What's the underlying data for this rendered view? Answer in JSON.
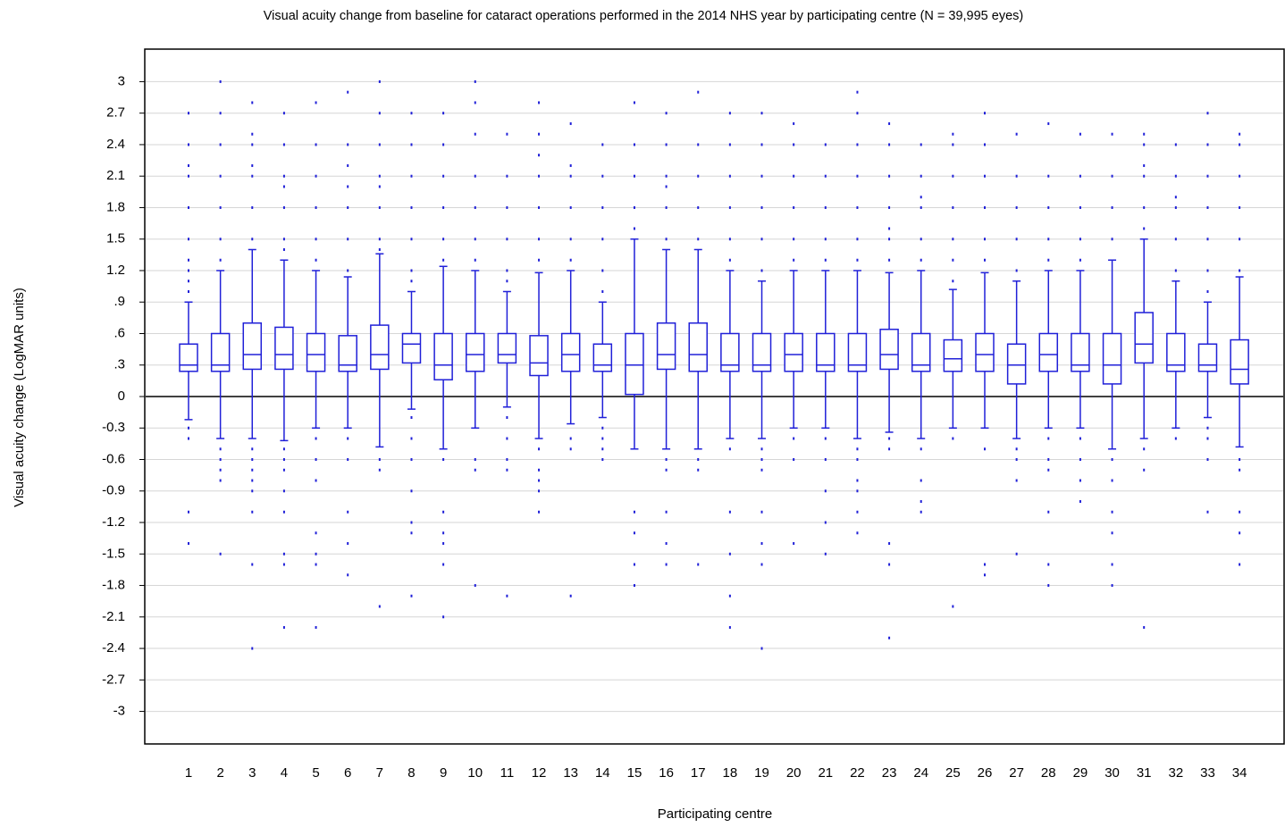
{
  "chart_data": {
    "type": "box",
    "title": "Visual acuity change from baseline for cataract operations performed in the 2014 NHS year by participating centre (N = 39,995 eyes)",
    "x_label": "Participating centre",
    "y_label": "Visual acuity change (LogMAR units)",
    "color": "#2020d8",
    "grid": true,
    "hline": 0,
    "ylim": [
      -3.31,
      3.31
    ],
    "yticks": [
      3,
      2.7,
      2.4,
      2.1,
      1.8,
      1.5,
      1.2,
      {
        "value": 0.9,
        "label": ".9"
      },
      {
        "value": 0.6,
        "label": ".6"
      },
      {
        "value": 0.3,
        "label": ".3"
      },
      0,
      -0.3,
      -0.6,
      -0.9,
      -1.2,
      -1.5,
      -1.8,
      -2.1,
      -2.4,
      -2.7,
      -3
    ],
    "categories": [
      "1",
      "2",
      "3",
      "4",
      "5",
      "6",
      "7",
      "8",
      "9",
      "10",
      "11",
      "12",
      "13",
      "14",
      "15",
      "16",
      "17",
      "18",
      "19",
      "20",
      "21",
      "22",
      "23",
      "24",
      "25",
      "26",
      "27",
      "28",
      "29",
      "30",
      "31",
      "32",
      "33",
      "34"
    ],
    "whisker_low": [
      -0.22,
      -0.4,
      -0.4,
      -0.42,
      -0.3,
      -0.3,
      -0.48,
      -0.12,
      -0.5,
      -0.3,
      -0.1,
      -0.4,
      -0.26,
      -0.2,
      -0.5,
      -0.5,
      -0.5,
      -0.4,
      -0.4,
      -0.3,
      -0.3,
      -0.4,
      -0.34,
      -0.4,
      -0.3,
      -0.3,
      -0.4,
      -0.3,
      -0.3,
      -0.5,
      -0.4,
      -0.3,
      -0.2,
      -0.48
    ],
    "q1": [
      0.24,
      0.24,
      0.26,
      0.26,
      0.24,
      0.24,
      0.26,
      0.32,
      0.16,
      0.24,
      0.32,
      0.2,
      0.24,
      0.24,
      0.02,
      0.26,
      0.24,
      0.24,
      0.24,
      0.24,
      0.24,
      0.24,
      0.26,
      0.24,
      0.24,
      0.24,
      0.12,
      0.24,
      0.24,
      0.12,
      0.32,
      0.24,
      0.24,
      0.12
    ],
    "median": [
      0.3,
      0.3,
      0.4,
      0.4,
      0.4,
      0.3,
      0.4,
      0.5,
      0.3,
      0.4,
      0.4,
      0.32,
      0.4,
      0.3,
      0.3,
      0.4,
      0.4,
      0.3,
      0.3,
      0.4,
      0.3,
      0.3,
      0.4,
      0.3,
      0.36,
      0.4,
      0.3,
      0.4,
      0.3,
      0.3,
      0.5,
      0.3,
      0.3,
      0.26
    ],
    "q3": [
      0.5,
      0.6,
      0.7,
      0.66,
      0.6,
      0.58,
      0.68,
      0.6,
      0.6,
      0.6,
      0.6,
      0.58,
      0.6,
      0.5,
      0.6,
      0.7,
      0.7,
      0.6,
      0.6,
      0.6,
      0.6,
      0.6,
      0.64,
      0.6,
      0.54,
      0.6,
      0.5,
      0.6,
      0.6,
      0.6,
      0.8,
      0.6,
      0.5,
      0.54
    ],
    "whisker_high": [
      0.9,
      1.2,
      1.4,
      1.3,
      1.2,
      1.14,
      1.36,
      1.0,
      1.24,
      1.2,
      1.0,
      1.18,
      1.2,
      0.9,
      1.5,
      1.4,
      1.4,
      1.2,
      1.1,
      1.2,
      1.2,
      1.2,
      1.18,
      1.2,
      1.02,
      1.18,
      1.1,
      1.2,
      1.2,
      1.3,
      1.5,
      1.1,
      0.9,
      1.14
    ],
    "outliers": [
      [
        1.0,
        1.1,
        1.2,
        1.3,
        1.5,
        1.8,
        2.1,
        2.2,
        2.4,
        2.7,
        -0.3,
        -0.4,
        -1.1,
        -1.4
      ],
      [
        1.3,
        1.5,
        1.8,
        2.1,
        2.4,
        2.7,
        3.0,
        -0.5,
        -0.6,
        -0.7,
        -0.8,
        -1.5
      ],
      [
        1.5,
        1.8,
        2.1,
        2.2,
        2.4,
        2.5,
        2.8,
        -0.5,
        -0.6,
        -0.7,
        -0.8,
        -0.9,
        -1.1,
        -1.6,
        -2.4
      ],
      [
        1.4,
        1.5,
        1.8,
        2.0,
        2.1,
        2.4,
        2.7,
        -0.5,
        -0.6,
        -0.7,
        -0.9,
        -1.1,
        -1.5,
        -1.6,
        -2.2
      ],
      [
        1.3,
        1.5,
        1.8,
        2.1,
        2.4,
        2.8,
        -0.4,
        -0.6,
        -0.8,
        -1.3,
        -1.5,
        -1.6,
        -2.2
      ],
      [
        1.2,
        1.5,
        1.8,
        2.0,
        2.2,
        2.4,
        2.9,
        -0.4,
        -0.6,
        -1.1,
        -1.4,
        -1.7
      ],
      [
        1.4,
        1.5,
        1.8,
        2.0,
        2.1,
        2.4,
        2.7,
        3.0,
        -0.6,
        -0.7,
        -2.0
      ],
      [
        1.1,
        1.2,
        1.5,
        1.8,
        2.1,
        2.4,
        2.7,
        -0.2,
        -0.4,
        -0.6,
        -0.9,
        -1.2,
        -1.3,
        -1.9
      ],
      [
        1.3,
        1.5,
        1.8,
        2.1,
        2.4,
        2.7,
        -0.6,
        -1.1,
        -1.3,
        -1.4,
        -1.6,
        -2.1
      ],
      [
        1.3,
        1.5,
        1.8,
        2.1,
        2.5,
        2.8,
        3.0,
        -0.6,
        -0.7,
        -1.8
      ],
      [
        1.1,
        1.2,
        1.5,
        1.8,
        2.1,
        2.5,
        -0.2,
        -0.4,
        -0.6,
        -0.7,
        -1.9
      ],
      [
        1.3,
        1.5,
        1.8,
        2.1,
        2.3,
        2.5,
        2.8,
        -0.5,
        -0.7,
        -0.8,
        -0.9,
        -1.1
      ],
      [
        1.3,
        1.5,
        1.8,
        2.1,
        2.2,
        2.6,
        -0.4,
        -0.5,
        -1.9
      ],
      [
        1.0,
        1.2,
        1.5,
        1.8,
        2.1,
        2.4,
        -0.3,
        -0.4,
        -0.5,
        -0.6
      ],
      [
        1.6,
        1.8,
        2.1,
        2.4,
        2.8,
        -1.1,
        -1.3,
        -1.6,
        -1.8
      ],
      [
        1.5,
        1.8,
        2.0,
        2.1,
        2.4,
        2.7,
        -0.6,
        -0.7,
        -1.1,
        -1.4,
        -1.6
      ],
      [
        1.5,
        1.8,
        2.1,
        2.4,
        2.9,
        -0.6,
        -0.7,
        -1.6
      ],
      [
        1.3,
        1.5,
        1.8,
        2.1,
        2.4,
        2.7,
        -0.5,
        -1.1,
        -1.5,
        -1.9,
        -2.2
      ],
      [
        1.2,
        1.5,
        1.8,
        2.1,
        2.4,
        2.7,
        -0.5,
        -0.6,
        -0.7,
        -1.1,
        -1.4,
        -1.6,
        -2.4
      ],
      [
        1.3,
        1.5,
        1.8,
        2.1,
        2.4,
        2.6,
        -0.4,
        -0.6,
        -1.4
      ],
      [
        1.3,
        1.5,
        1.8,
        2.1,
        2.4,
        -0.4,
        -0.6,
        -0.9,
        -1.2,
        -1.5
      ],
      [
        1.3,
        1.5,
        1.8,
        2.1,
        2.4,
        2.7,
        2.9,
        -0.5,
        -0.6,
        -0.8,
        -0.9,
        -1.1,
        -1.3
      ],
      [
        1.3,
        1.5,
        1.6,
        1.8,
        2.1,
        2.4,
        2.6,
        -0.4,
        -0.5,
        -1.4,
        -1.6,
        -2.3
      ],
      [
        1.3,
        1.5,
        1.8,
        1.9,
        2.1,
        2.4,
        -0.5,
        -0.8,
        -1.0,
        -1.1
      ],
      [
        1.1,
        1.3,
        1.5,
        1.8,
        2.1,
        2.4,
        2.5,
        -0.4,
        -2.0
      ],
      [
        1.3,
        1.5,
        1.8,
        2.1,
        2.4,
        2.7,
        -0.5,
        -1.6,
        -1.7
      ],
      [
        1.2,
        1.5,
        1.8,
        2.1,
        2.5,
        -0.5,
        -0.6,
        -0.8,
        -1.5
      ],
      [
        1.3,
        1.5,
        1.8,
        2.1,
        2.6,
        -0.4,
        -0.6,
        -0.7,
        -1.1,
        -1.6,
        -1.8
      ],
      [
        1.3,
        1.5,
        1.8,
        2.1,
        2.5,
        -0.4,
        -0.6,
        -0.8,
        -1.0
      ],
      [
        1.5,
        1.8,
        2.1,
        2.5,
        -0.6,
        -0.8,
        -1.1,
        -1.3,
        -1.6,
        -1.8
      ],
      [
        1.6,
        1.8,
        2.1,
        2.2,
        2.4,
        2.5,
        -0.5,
        -0.7,
        -2.2
      ],
      [
        1.2,
        1.5,
        1.8,
        1.9,
        2.1,
        2.4,
        -0.4
      ],
      [
        1.0,
        1.2,
        1.5,
        1.8,
        2.1,
        2.4,
        2.7,
        -0.3,
        -0.4,
        -0.6,
        -1.1
      ],
      [
        1.2,
        1.5,
        1.8,
        2.1,
        2.4,
        2.5,
        -0.6,
        -0.7,
        -1.1,
        -1.3,
        -1.6
      ]
    ]
  }
}
